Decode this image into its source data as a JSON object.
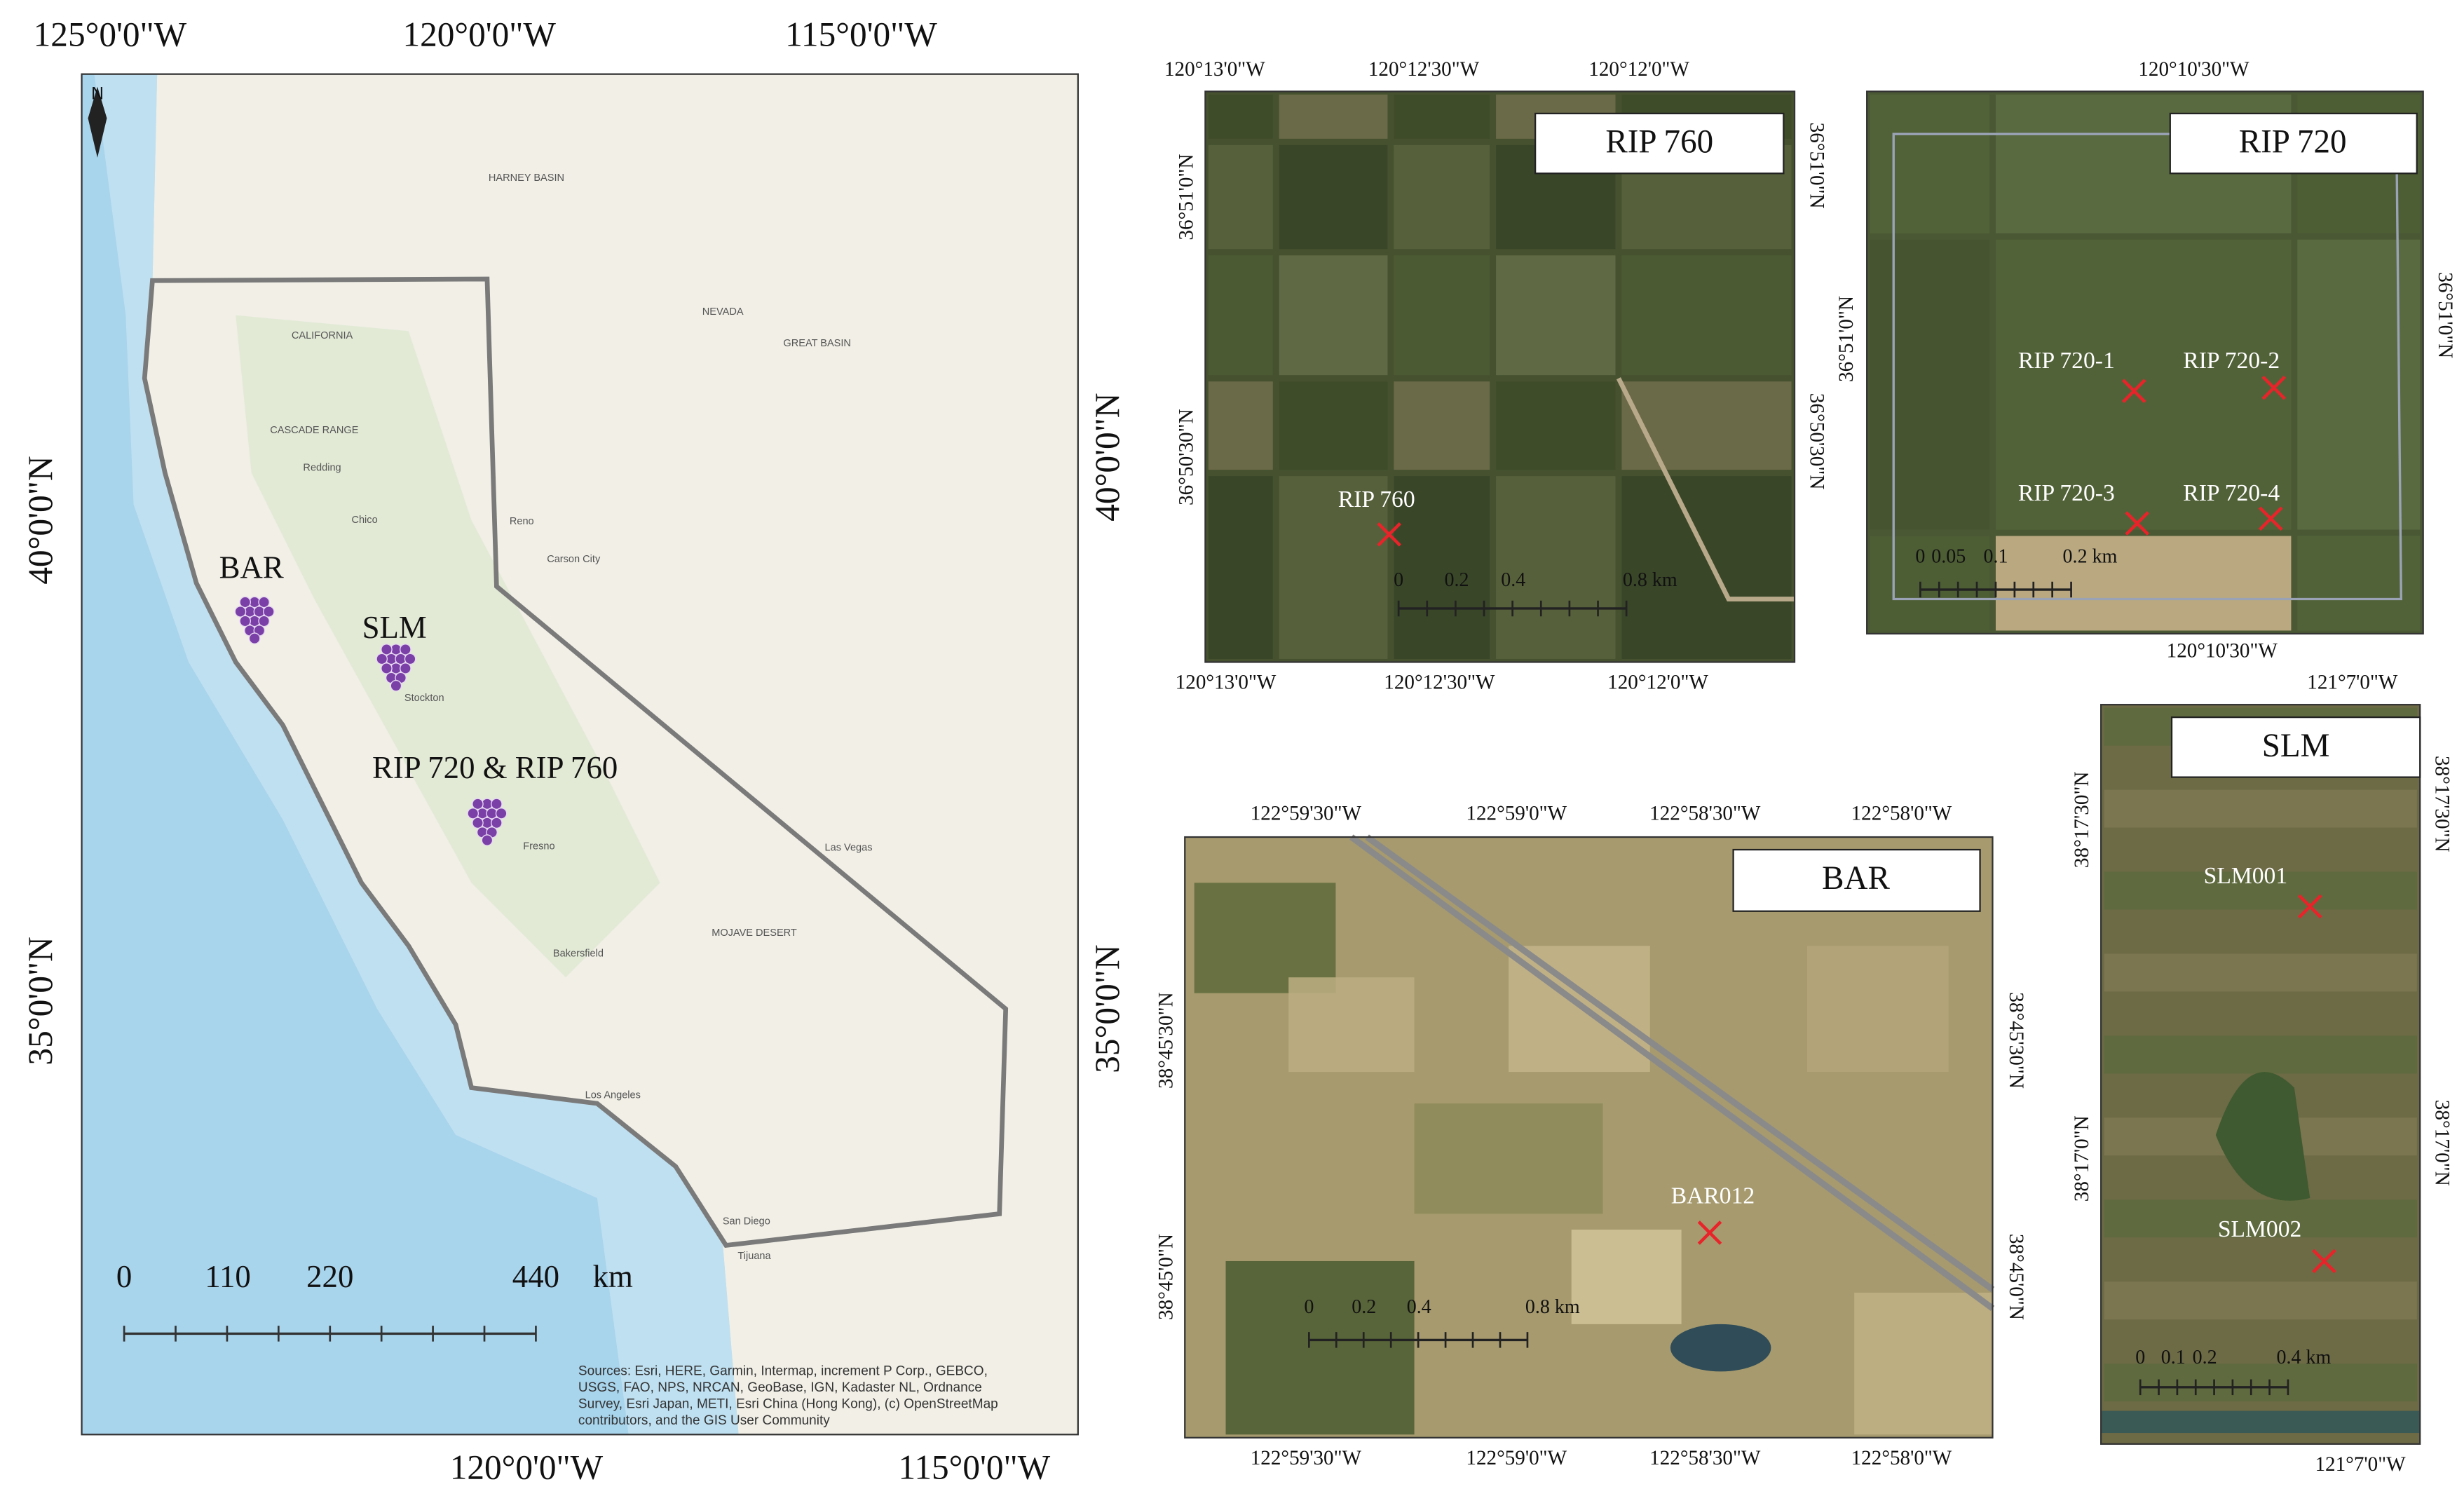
{
  "overview": {
    "north": "N",
    "lon_top": [
      "125°0'0\"W",
      "120°0'0\"W",
      "115°0'0\"W"
    ],
    "lon_bottom": [
      "120°0'0\"W",
      "115°0'0\"W"
    ],
    "lat_left": [
      "40°0'0\"N",
      "35°0'0\"N"
    ],
    "lat_right": [
      "40°0'0\"N",
      "35°0'0\"N"
    ],
    "sites": [
      "BAR",
      "SLM",
      "RIP 720 & RIP 760"
    ],
    "scale": [
      "0",
      "110",
      "220",
      "440",
      "km"
    ],
    "source": [
      "Sources: Esri, HERE, Garmin, Intermap, increment P Corp., GEBCO,",
      "USGS, FAO, NPS, NRCAN, GeoBase, IGN, Kadaster NL, Ordnance",
      "Survey, Esri Japan, METI, Esri China (Hong Kong), (c) OpenStreetMap",
      "contributors, and the GIS User Community"
    ],
    "places": [
      "HARNEY BASIN",
      "NEVADA",
      "GREAT BASIN",
      "CALIFORNIA",
      "CASCADE RANGE",
      "Redding",
      "Chico",
      "Reno",
      "Carson City",
      "Stockton",
      "Fresno",
      "Las Vegas",
      "Bakersfield",
      "MOJAVE DESERT",
      "Los Angeles",
      "San Diego",
      "Tijuana"
    ]
  },
  "panels": [
    {
      "title": "RIP 760",
      "top": [
        "120°13'0\"W",
        "120°12'30\"W",
        "120°12'0\"W"
      ],
      "bottom": [
        "120°13'0\"W",
        "120°12'30\"W",
        "120°12'0\"W"
      ],
      "left": [
        "36°51'0\"N",
        "36°50'30\"N"
      ],
      "right": [
        "36°51'0\"N",
        "36°50'30\"N"
      ],
      "points": [
        "RIP 760"
      ],
      "scale": [
        "0",
        "0.2",
        "0.4",
        "0.8 km"
      ]
    },
    {
      "title": "RIP 720",
      "top": [
        "120°10'30\"W"
      ],
      "bottom": [
        "120°10'30\"W"
      ],
      "left": [
        "36°51'0\"N"
      ],
      "right": [
        "36°51'0\"N"
      ],
      "points": [
        "RIP 720-1",
        "RIP 720-2",
        "RIP 720-3",
        "RIP 720-4"
      ],
      "scale": [
        "0",
        "0.05",
        "0.1",
        "0.2 km"
      ]
    },
    {
      "title": "BAR",
      "top": [
        "122°59'30\"W",
        "122°59'0\"W",
        "122°58'30\"W",
        "122°58'0\"W"
      ],
      "bottom": [
        "122°59'30\"W",
        "122°59'0\"W",
        "122°58'30\"W",
        "122°58'0\"W"
      ],
      "left": [
        "38°45'30\"N",
        "38°45'0\"N"
      ],
      "right": [
        "38°45'30\"N",
        "38°45'0\"N"
      ],
      "points": [
        "BAR012"
      ],
      "scale": [
        "0",
        "0.2",
        "0.4",
        "0.8 km"
      ]
    },
    {
      "title": "SLM",
      "top": [
        "121°7'0\"W"
      ],
      "bottom": [
        "121°7'0\"W"
      ],
      "left": [
        "38°17'30\"N",
        "38°17'0\"N"
      ],
      "right": [
        "38°17'30\"N",
        "38°17'0\"N"
      ],
      "points": [
        "SLM001",
        "SLM002"
      ],
      "scale": [
        "0",
        "0.1",
        "0.2",
        "0.4 km"
      ]
    }
  ]
}
